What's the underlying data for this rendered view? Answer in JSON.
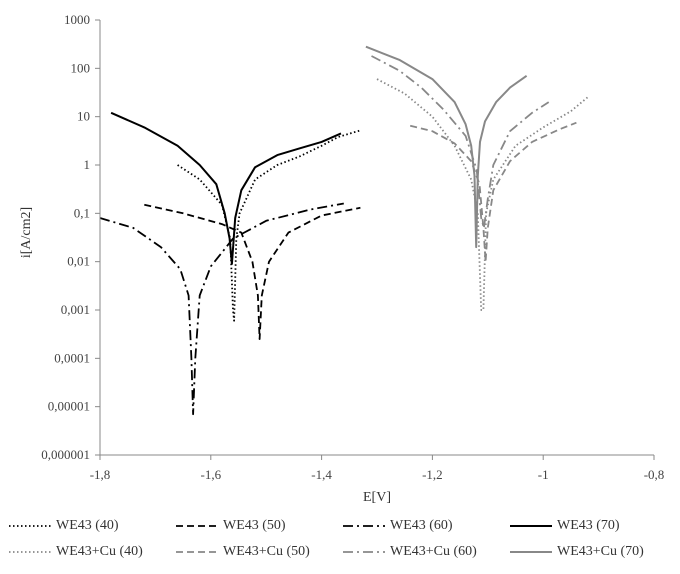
{
  "chart_data": {
    "type": "line",
    "xlabel": "E[V]",
    "ylabel": "i[A/cm2]",
    "xlim": [
      -1.8,
      -0.8
    ],
    "ylim": [
      1e-06,
      1000
    ],
    "y_scale": "log",
    "x_ticks": [
      "-1,8",
      "-1,6",
      "-1,4",
      "-1,2",
      "-1",
      "-0,8"
    ],
    "x_tick_values": [
      -1.8,
      -1.6,
      -1.4,
      -1.2,
      -1.0,
      -0.8
    ],
    "y_ticks": [
      "0,000001",
      "0,00001",
      "0,0001",
      "0,001",
      "0,01",
      "0,1",
      "1",
      "10",
      "100",
      "1000"
    ],
    "y_tick_values": [
      1e-06,
      1e-05,
      0.0001,
      0.001,
      0.01,
      0.1,
      1,
      10,
      100,
      1000
    ],
    "grid": false,
    "legend_position": "bottom",
    "series": [
      {
        "name": "WE43 (40)",
        "color": "#000000",
        "dash": "dotted",
        "x": [
          -1.66,
          -1.62,
          -1.58,
          -1.565,
          -1.56,
          -1.558,
          -1.554,
          -1.548,
          -1.52,
          -1.48,
          -1.44,
          -1.4,
          -1.37,
          -1.33
        ],
        "y": [
          1.0,
          0.5,
          0.15,
          0.03,
          0.001,
          0.0006,
          0.03,
          0.1,
          0.5,
          1.0,
          1.5,
          2.5,
          3.8,
          5.2
        ]
      },
      {
        "name": "WE43 (50)",
        "color": "#000000",
        "dash": "dashed",
        "x": [
          -1.72,
          -1.65,
          -1.58,
          -1.545,
          -1.525,
          -1.515,
          -1.512,
          -1.508,
          -1.495,
          -1.46,
          -1.4,
          -1.33
        ],
        "y": [
          0.15,
          0.1,
          0.06,
          0.04,
          0.01,
          0.002,
          0.00025,
          0.002,
          0.01,
          0.04,
          0.09,
          0.13
        ]
      },
      {
        "name": "WE43 (60)",
        "color": "#000000",
        "dash": "dashdot",
        "x": [
          -1.8,
          -1.74,
          -1.69,
          -1.655,
          -1.64,
          -1.635,
          -1.632,
          -1.628,
          -1.62,
          -1.6,
          -1.56,
          -1.5,
          -1.42,
          -1.36
        ],
        "y": [
          0.08,
          0.05,
          0.02,
          0.007,
          0.002,
          0.0001,
          7e-06,
          0.0001,
          0.002,
          0.008,
          0.03,
          0.07,
          0.12,
          0.16
        ]
      },
      {
        "name": "WE43 (70)",
        "color": "#000000",
        "dash": "solid",
        "x": [
          -1.78,
          -1.72,
          -1.66,
          -1.62,
          -1.59,
          -1.575,
          -1.566,
          -1.562,
          -1.556,
          -1.545,
          -1.52,
          -1.48,
          -1.44,
          -1.4,
          -1.365
        ],
        "y": [
          12,
          6,
          2.5,
          1.0,
          0.4,
          0.1,
          0.03,
          0.009,
          0.08,
          0.3,
          0.9,
          1.6,
          2.2,
          3.0,
          4.5
        ]
      },
      {
        "name": "WE43+Cu (40)",
        "color": "#888888",
        "dash": "dotted",
        "x": [
          -1.3,
          -1.25,
          -1.2,
          -1.16,
          -1.13,
          -1.118,
          -1.112,
          -1.108,
          -1.103,
          -1.09,
          -1.05,
          -1.0,
          -0.95,
          -0.92
        ],
        "y": [
          60,
          30,
          10,
          2.5,
          0.5,
          0.1,
          0.001,
          0.001,
          0.1,
          0.5,
          2.5,
          6,
          13,
          25
        ]
      },
      {
        "name": "WE43+Cu (50)",
        "color": "#888888",
        "dash": "dashed",
        "x": [
          -1.24,
          -1.2,
          -1.16,
          -1.13,
          -1.115,
          -1.108,
          -1.104,
          -1.1,
          -1.09,
          -1.06,
          -1.02,
          -0.97,
          -0.94
        ],
        "y": [
          6.5,
          5,
          2.8,
          1.2,
          0.4,
          0.05,
          0.01,
          0.05,
          0.3,
          1.2,
          3.0,
          5.5,
          7.5
        ]
      },
      {
        "name": "WE43+Cu (60)",
        "color": "#888888",
        "dash": "dashdot",
        "x": [
          -1.31,
          -1.26,
          -1.22,
          -1.18,
          -1.14,
          -1.12,
          -1.112,
          -1.107,
          -1.1,
          -1.09,
          -1.06,
          -1.02,
          -0.99
        ],
        "y": [
          180,
          90,
          40,
          14,
          4,
          0.8,
          0.08,
          0.05,
          0.2,
          1.0,
          5,
          12,
          20
        ]
      },
      {
        "name": "WE43+Cu (70)",
        "color": "#888888",
        "dash": "solid",
        "x": [
          -1.32,
          -1.26,
          -1.2,
          -1.16,
          -1.14,
          -1.13,
          -1.124,
          -1.121,
          -1.118,
          -1.114,
          -1.105,
          -1.085,
          -1.06,
          -1.03
        ],
        "y": [
          280,
          150,
          60,
          20,
          7,
          2.5,
          0.6,
          0.02,
          0.6,
          3,
          8,
          20,
          40,
          70
        ]
      }
    ]
  }
}
